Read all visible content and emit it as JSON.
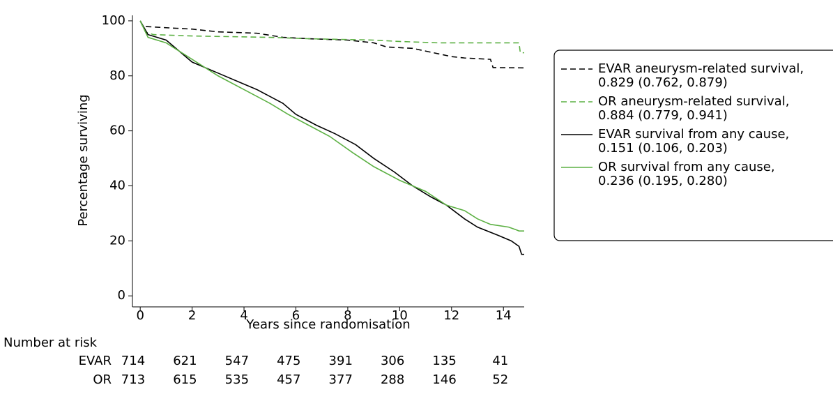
{
  "chart_data": {
    "type": "line",
    "xlabel": "Years since randomisation",
    "ylabel": "Percentage surviving",
    "xlim": [
      -0.3,
      14.8
    ],
    "ylim": [
      -4,
      102
    ],
    "xticks": [
      0,
      2,
      4,
      6,
      8,
      10,
      12,
      14
    ],
    "yticks": [
      0,
      20,
      40,
      60,
      80,
      100
    ],
    "grid": false,
    "legend": "right",
    "series": [
      {
        "name": "EVAR aneurysm-related survival,",
        "estimate": "0.829 (0.762, 0.879)",
        "color": "#000000",
        "dash": true,
        "x": [
          0,
          0.1,
          1,
          2,
          3,
          4.5,
          5.5,
          6.5,
          8,
          9,
          9.5,
          10.5,
          11,
          11.5,
          12,
          12.5,
          13.5,
          13.6,
          14.8
        ],
        "values": [
          100,
          98,
          97.5,
          97,
          96,
          95.5,
          94,
          93.5,
          93,
          92,
          90.5,
          90,
          89,
          88,
          87,
          86.5,
          86,
          83,
          82.9
        ]
      },
      {
        "name": "OR aneurysm-related survival,",
        "estimate": "0.884 (0.779, 0.941)",
        "color": "#5cb043",
        "dash": true,
        "x": [
          0,
          0.2,
          0.5,
          2,
          5,
          6.5,
          9,
          10,
          11.5,
          14.6,
          14.65,
          14.8
        ],
        "values": [
          100,
          96,
          95,
          94.5,
          94,
          93.5,
          93,
          92.5,
          92,
          92,
          88.4,
          88.4
        ]
      },
      {
        "name": "EVAR survival from any cause,",
        "estimate": "0.151 (0.106, 0.203)",
        "color": "#000000",
        "dash": false,
        "x": [
          0,
          0.3,
          1,
          1.5,
          2,
          3,
          4,
          4.5,
          5.5,
          6,
          6.8,
          7.5,
          8.3,
          9,
          9.8,
          10.5,
          11.2,
          11.8,
          12.5,
          13,
          13.8,
          14.3,
          14.6,
          14.7,
          14.8
        ],
        "values": [
          100,
          95,
          93,
          89,
          85,
          81,
          77,
          75,
          70,
          66,
          62,
          59,
          55,
          50,
          45,
          40,
          36,
          33,
          28,
          25,
          22,
          20,
          18,
          15.1,
          15.1
        ]
      },
      {
        "name": "OR survival from any cause,",
        "estimate": "0.236 (0.195, 0.280)",
        "color": "#5cb043",
        "dash": false,
        "x": [
          0,
          0.3,
          1,
          2,
          3,
          4,
          5,
          5.7,
          6.5,
          7.3,
          8.2,
          9,
          10,
          11,
          11.8,
          12.5,
          13,
          13.5,
          14.2,
          14.5,
          14.6,
          14.8
        ],
        "values": [
          100,
          94,
          92,
          86,
          80,
          75,
          70,
          66,
          62,
          58,
          52,
          47,
          42,
          38,
          33,
          31,
          28,
          26,
          25,
          24,
          23.6,
          23.6
        ]
      }
    ],
    "risk_table": {
      "title": "Number at risk",
      "rows": [
        {
          "name": "EVAR",
          "values": [
            714,
            621,
            547,
            475,
            391,
            306,
            135,
            41
          ]
        },
        {
          "name": "OR",
          "values": [
            713,
            615,
            535,
            457,
            377,
            288,
            146,
            52
          ]
        }
      ]
    }
  }
}
